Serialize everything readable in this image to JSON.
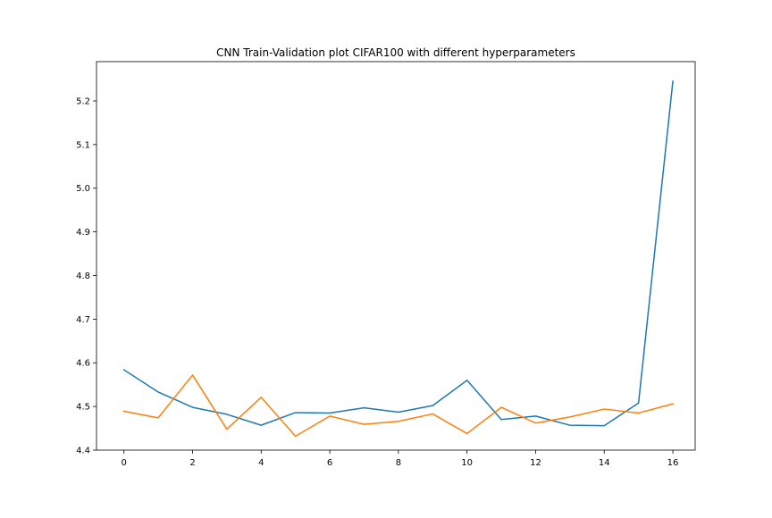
{
  "chart_data": {
    "type": "line",
    "title": "CNN Train-Validation plot CIFAR100 with different hyperparameters",
    "xlabel": "",
    "ylabel": "",
    "x": [
      0,
      1,
      2,
      3,
      4,
      5,
      6,
      7,
      8,
      9,
      10,
      11,
      12,
      13,
      14,
      15,
      16
    ],
    "series": [
      {
        "color": "#1f77b4",
        "values": [
          4.584,
          4.533,
          4.498,
          4.482,
          4.457,
          4.486,
          4.485,
          4.497,
          4.487,
          4.502,
          4.56,
          4.47,
          4.478,
          4.457,
          4.456,
          4.508,
          5.245
        ]
      },
      {
        "color": "#ff7f0e",
        "values": [
          4.489,
          4.474,
          4.572,
          4.448,
          4.521,
          4.432,
          4.478,
          4.459,
          4.466,
          4.483,
          4.438,
          4.498,
          4.462,
          4.476,
          4.494,
          4.485,
          4.506
        ]
      }
    ],
    "xlim": [
      -0.8,
      16.65
    ],
    "ylim": [
      4.4,
      5.29
    ],
    "xticks": [
      0,
      2,
      4,
      6,
      8,
      10,
      12,
      14,
      16
    ],
    "yticks": [
      4.4,
      4.5,
      4.6,
      4.7,
      4.8,
      4.9,
      5.0,
      5.1,
      5.2
    ],
    "yticklabels": [
      "4.4",
      "4.5",
      "4.6",
      "4.7",
      "4.8",
      "4.9",
      "5.0",
      "5.1",
      "5.2"
    ],
    "grid": false,
    "legend": "none"
  }
}
